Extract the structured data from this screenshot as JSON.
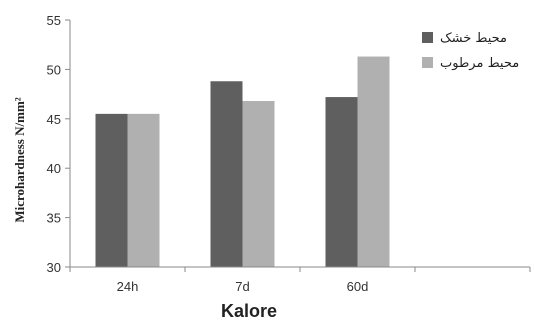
{
  "chart_data": {
    "type": "bar",
    "categories": [
      "24h",
      "7d",
      "60d",
      ""
    ],
    "series": [
      {
        "name": "محیط خشک",
        "values": [
          45.5,
          48.8,
          47.2,
          null
        ],
        "color": "#5f5f5f"
      },
      {
        "name": "محیط مرطوب",
        "values": [
          45.5,
          46.8,
          51.3,
          null
        ],
        "color": "#b0b0b0"
      }
    ],
    "yticks": [
      30,
      35,
      40,
      45,
      50,
      55
    ],
    "ylim": [
      30,
      55
    ],
    "xlabel": "Kalore",
    "ylabel": "Microhardness N/mm²",
    "grid": false,
    "legend_position": "top-right"
  }
}
